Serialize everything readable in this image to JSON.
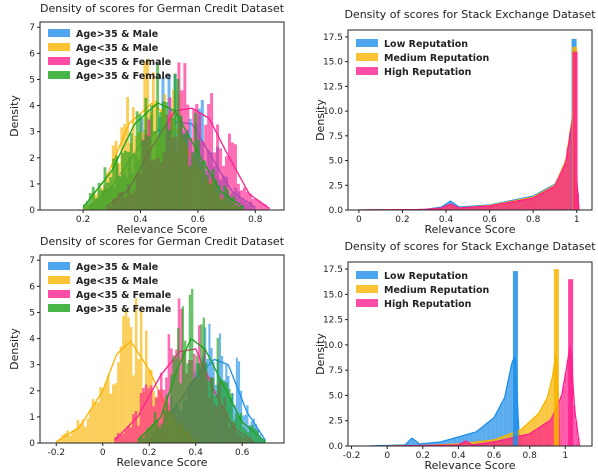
{
  "colors": {
    "blue": "#1f8fe8",
    "orange": "#f8b400",
    "pink": "#ff1f8e",
    "green": "#1aa31a",
    "axis": "#222222"
  },
  "chart_data": [
    {
      "type": "area",
      "title": "Density of scores for German Credit Dataset",
      "xlabel": "Relevance Score",
      "ylabel": "Density",
      "xlim": [
        0.05,
        0.9
      ],
      "ylim": [
        0,
        7.2
      ],
      "xticks": [
        0.2,
        0.4,
        0.6,
        0.8
      ],
      "yticks": [
        0,
        1,
        2,
        3,
        4,
        5,
        6,
        7
      ],
      "legend": "top-left",
      "series": [
        {
          "name": "Age>35 & Male",
          "color": "blue",
          "kde": {
            "x": [
              0.22,
              0.3,
              0.4,
              0.5,
              0.58,
              0.66,
              0.72,
              0.8
            ],
            "y": [
              0.1,
              0.9,
              2.5,
              3.4,
              3.3,
              1.8,
              0.7,
              0.1
            ]
          }
        },
        {
          "name": "Age<35 & Male",
          "color": "orange",
          "kde": {
            "x": [
              0.2,
              0.28,
              0.36,
              0.44,
              0.5,
              0.58,
              0.66,
              0.75
            ],
            "y": [
              0.1,
              1.2,
              3.3,
              4.1,
              3.5,
              2.0,
              0.6,
              0.05
            ]
          }
        },
        {
          "name": "Age<35 & Female",
          "color": "pink",
          "kde": {
            "x": [
              0.28,
              0.36,
              0.44,
              0.52,
              0.58,
              0.64,
              0.7,
              0.78,
              0.85
            ],
            "y": [
              0.1,
              0.8,
              2.4,
              3.8,
              3.9,
              3.5,
              2.2,
              0.6,
              0.05
            ]
          }
        },
        {
          "name": "Age>35 & Female",
          "color": "green",
          "kde": {
            "x": [
              0.2,
              0.3,
              0.38,
              0.46,
              0.52,
              0.6,
              0.68,
              0.76
            ],
            "y": [
              0.1,
              1.5,
              3.3,
              4.1,
              3.8,
              2.2,
              0.7,
              0.1
            ]
          }
        }
      ]
    },
    {
      "type": "area",
      "title": "Density of scores for Stack Exchange Dataset",
      "xlabel": "Relevance Score",
      "ylabel": "Density",
      "xlim": [
        -0.05,
        1.07
      ],
      "ylim": [
        0,
        18.2
      ],
      "xticks": [
        0.0,
        0.2,
        0.4,
        0.6,
        0.8,
        1.0
      ],
      "yticks": [
        0.0,
        2.5,
        5.0,
        7.5,
        10.0,
        12.5,
        15.0,
        17.5
      ],
      "legend": "top-left",
      "series": [
        {
          "name": "Low Reputation",
          "color": "blue",
          "kde": {
            "x": [
              0.0,
              0.3,
              0.38,
              0.42,
              0.46,
              0.6,
              0.8,
              0.9,
              0.95,
              0.985,
              1.0,
              1.01
            ],
            "y": [
              0.0,
              0.05,
              0.3,
              0.9,
              0.3,
              0.5,
              1.4,
              2.6,
              4.8,
              9.0,
              3.0,
              0.0
            ]
          }
        },
        {
          "name": "Medium Reputation",
          "color": "orange",
          "kde": {
            "x": [
              0.0,
              0.3,
              0.38,
              0.42,
              0.46,
              0.6,
              0.8,
              0.9,
              0.95,
              0.985,
              1.0,
              1.01
            ],
            "y": [
              0.0,
              0.05,
              0.2,
              0.6,
              0.2,
              0.45,
              1.3,
              2.5,
              5.0,
              10.2,
              3.0,
              0.0
            ]
          }
        },
        {
          "name": "High Reputation",
          "color": "pink",
          "kde": {
            "x": [
              0.0,
              0.3,
              0.38,
              0.42,
              0.46,
              0.6,
              0.8,
              0.9,
              0.95,
              0.985,
              1.0,
              1.01
            ],
            "y": [
              0.0,
              0.05,
              0.2,
              0.6,
              0.2,
              0.4,
              1.2,
              2.4,
              4.8,
              9.8,
              3.0,
              0.0
            ]
          }
        }
      ],
      "peak_bars": {
        "x": 0.99,
        "values": [
          17.3,
          16.5,
          16.0
        ]
      }
    },
    {
      "type": "area",
      "title": "Density of scores for German Credit Dataset",
      "xlabel": "Relevance Score",
      "ylabel": "Density",
      "xlim": [
        -0.27,
        0.78
      ],
      "ylim": [
        0,
        7.2
      ],
      "xticks": [
        -0.2,
        0.0,
        0.2,
        0.4,
        0.6
      ],
      "yticks": [
        0,
        1,
        2,
        3,
        4,
        5,
        6,
        7
      ],
      "legend": "top-left",
      "series": [
        {
          "name": "Age>35 & Male",
          "color": "blue",
          "kde": {
            "x": [
              0.2,
              0.3,
              0.4,
              0.48,
              0.54,
              0.62,
              0.7
            ],
            "y": [
              0.1,
              1.2,
              2.5,
              3.2,
              3.0,
              1.2,
              0.1
            ]
          }
        },
        {
          "name": "Age<35 & Male",
          "color": "orange",
          "kde": {
            "x": [
              -0.2,
              -0.1,
              0.0,
              0.06,
              0.12,
              0.2,
              0.3,
              0.4
            ],
            "y": [
              0.05,
              0.6,
              2.0,
              3.4,
              3.9,
              2.8,
              0.8,
              0.05
            ]
          }
        },
        {
          "name": "Age<35 & Female",
          "color": "pink",
          "kde": {
            "x": [
              0.05,
              0.15,
              0.25,
              0.33,
              0.4,
              0.48,
              0.56,
              0.65
            ],
            "y": [
              0.1,
              1.0,
              2.6,
              3.5,
              3.6,
              2.0,
              0.6,
              0.05
            ]
          }
        },
        {
          "name": "Age>35 & Female",
          "color": "green",
          "kde": {
            "x": [
              0.15,
              0.25,
              0.32,
              0.38,
              0.44,
              0.52,
              0.6,
              0.7
            ],
            "y": [
              0.1,
              1.0,
              2.8,
              4.0,
              3.6,
              2.2,
              0.8,
              0.05
            ]
          }
        }
      ]
    },
    {
      "type": "area",
      "title": "Density of scores for Stack Exchange Dataset",
      "xlabel": "Relevance Score",
      "ylabel": "Density",
      "xlim": [
        -0.22,
        1.15
      ],
      "ylim": [
        0,
        18.2
      ],
      "xticks": [
        -0.2,
        0.0,
        0.2,
        0.4,
        0.6,
        0.8,
        1.0
      ],
      "yticks": [
        0.0,
        2.5,
        5.0,
        7.5,
        10.0,
        12.5,
        15.0,
        17.5
      ],
      "legend": "top-left",
      "series": [
        {
          "name": "Low Reputation",
          "color": "blue",
          "kde": {
            "x": [
              -0.1,
              0.1,
              0.14,
              0.18,
              0.3,
              0.5,
              0.6,
              0.66,
              0.7,
              0.72,
              0.73,
              0.74,
              0.76
            ],
            "y": [
              0.0,
              0.1,
              0.8,
              0.2,
              0.4,
              1.4,
              2.8,
              4.8,
              8.2,
              9.0,
              5.0,
              1.0,
              0.0
            ]
          }
        },
        {
          "name": "Medium Reputation",
          "color": "orange",
          "kde": {
            "x": [
              0.0,
              0.2,
              0.4,
              0.6,
              0.75,
              0.85,
              0.9,
              0.93,
              0.95,
              0.96,
              0.97
            ],
            "y": [
              0.0,
              0.05,
              0.2,
              0.6,
              1.6,
              3.2,
              4.8,
              7.0,
              9.5,
              5.0,
              0.0
            ]
          }
        },
        {
          "name": "High Reputation",
          "color": "pink",
          "kde": {
            "x": [
              0.0,
              0.2,
              0.4,
              0.44,
              0.48,
              0.6,
              0.8,
              0.92,
              0.98,
              1.01,
              1.03,
              1.05,
              1.08
            ],
            "y": [
              0.0,
              0.05,
              0.1,
              0.5,
              0.1,
              0.4,
              1.2,
              2.6,
              5.0,
              8.0,
              10.3,
              4.0,
              0.0
            ]
          }
        }
      ],
      "peak_bars": {
        "x": [
          0.72,
          0.95,
          1.03
        ],
        "values": [
          17.3,
          17.5,
          16.5
        ]
      }
    }
  ]
}
